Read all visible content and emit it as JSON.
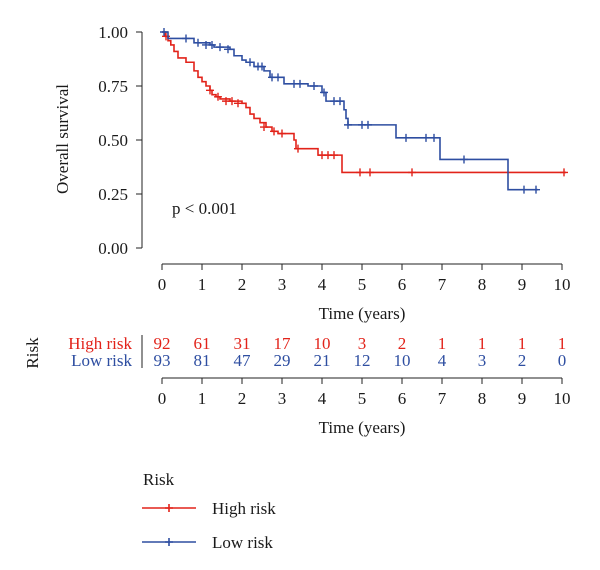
{
  "chart_data": {
    "type": "line",
    "subtype": "kaplan-meier",
    "ylabel": "Overall survival",
    "xlabel": "Time (years)",
    "annotation": "p < 0.001",
    "x_ticks": [
      0,
      1,
      2,
      3,
      4,
      5,
      6,
      7,
      8,
      9,
      10
    ],
    "y_ticks": [
      "0.00",
      "0.25",
      "0.50",
      "0.75",
      "1.00"
    ],
    "xlim": [
      0,
      10
    ],
    "ylim": [
      0,
      1
    ],
    "series": [
      {
        "name": "High risk",
        "color": "#e2231a",
        "steps": [
          [
            0,
            1.0
          ],
          [
            0.08,
            0.98
          ],
          [
            0.15,
            0.96
          ],
          [
            0.22,
            0.94
          ],
          [
            0.3,
            0.91
          ],
          [
            0.4,
            0.88
          ],
          [
            0.6,
            0.86
          ],
          [
            0.8,
            0.82
          ],
          [
            0.9,
            0.79
          ],
          [
            1.0,
            0.77
          ],
          [
            1.1,
            0.75
          ],
          [
            1.2,
            0.73
          ],
          [
            1.25,
            0.71
          ],
          [
            1.35,
            0.7
          ],
          [
            1.45,
            0.69
          ],
          [
            1.7,
            0.68
          ],
          [
            2.0,
            0.67
          ],
          [
            2.1,
            0.65
          ],
          [
            2.2,
            0.62
          ],
          [
            2.3,
            0.6
          ],
          [
            2.45,
            0.58
          ],
          [
            2.6,
            0.56
          ],
          [
            2.75,
            0.54
          ],
          [
            2.9,
            0.53
          ],
          [
            3.1,
            0.53
          ],
          [
            3.3,
            0.5
          ],
          [
            3.35,
            0.46
          ],
          [
            3.8,
            0.46
          ],
          [
            3.9,
            0.43
          ],
          [
            4.45,
            0.43
          ],
          [
            4.5,
            0.35
          ],
          [
            10.1,
            0.35
          ]
        ],
        "censors": [
          [
            0.1,
            0.98
          ],
          [
            1.2,
            0.73
          ],
          [
            1.4,
            0.7
          ],
          [
            1.6,
            0.68
          ],
          [
            1.75,
            0.68
          ],
          [
            1.9,
            0.67
          ],
          [
            2.55,
            0.56
          ],
          [
            2.8,
            0.54
          ],
          [
            3.0,
            0.53
          ],
          [
            3.4,
            0.46
          ],
          [
            4.0,
            0.43
          ],
          [
            4.15,
            0.43
          ],
          [
            4.3,
            0.43
          ],
          [
            4.95,
            0.35
          ],
          [
            5.2,
            0.35
          ],
          [
            6.25,
            0.35
          ],
          [
            10.05,
            0.35
          ]
        ]
      },
      {
        "name": "Low risk",
        "color": "#2e4ea1",
        "steps": [
          [
            0,
            1.0
          ],
          [
            0.15,
            0.97
          ],
          [
            0.75,
            0.97
          ],
          [
            0.8,
            0.95
          ],
          [
            1.2,
            0.94
          ],
          [
            1.3,
            0.93
          ],
          [
            1.7,
            0.92
          ],
          [
            1.8,
            0.89
          ],
          [
            2.0,
            0.87
          ],
          [
            2.1,
            0.86
          ],
          [
            2.3,
            0.84
          ],
          [
            2.55,
            0.82
          ],
          [
            2.7,
            0.79
          ],
          [
            3.0,
            0.79
          ],
          [
            3.05,
            0.76
          ],
          [
            3.6,
            0.76
          ],
          [
            3.65,
            0.75
          ],
          [
            3.95,
            0.75
          ],
          [
            4.0,
            0.72
          ],
          [
            4.1,
            0.68
          ],
          [
            4.5,
            0.68
          ],
          [
            4.55,
            0.64
          ],
          [
            4.6,
            0.6
          ],
          [
            4.65,
            0.57
          ],
          [
            5.8,
            0.57
          ],
          [
            5.85,
            0.51
          ],
          [
            6.9,
            0.51
          ],
          [
            6.95,
            0.41
          ],
          [
            8.6,
            0.41
          ],
          [
            8.65,
            0.27
          ],
          [
            9.4,
            0.27
          ]
        ],
        "censors": [
          [
            0.05,
            1.0
          ],
          [
            0.6,
            0.97
          ],
          [
            0.9,
            0.95
          ],
          [
            1.1,
            0.94
          ],
          [
            1.25,
            0.94
          ],
          [
            1.45,
            0.93
          ],
          [
            1.65,
            0.92
          ],
          [
            2.2,
            0.86
          ],
          [
            2.4,
            0.84
          ],
          [
            2.5,
            0.84
          ],
          [
            2.75,
            0.79
          ],
          [
            2.9,
            0.79
          ],
          [
            3.3,
            0.76
          ],
          [
            3.45,
            0.76
          ],
          [
            3.8,
            0.75
          ],
          [
            4.05,
            0.72
          ],
          [
            4.3,
            0.68
          ],
          [
            4.45,
            0.68
          ],
          [
            4.65,
            0.57
          ],
          [
            5.0,
            0.57
          ],
          [
            5.15,
            0.57
          ],
          [
            6.1,
            0.51
          ],
          [
            6.6,
            0.51
          ],
          [
            6.8,
            0.51
          ],
          [
            7.55,
            0.41
          ],
          [
            9.05,
            0.27
          ],
          [
            9.35,
            0.27
          ]
        ]
      }
    ]
  },
  "risk_table": {
    "title": "Risk",
    "xlabel": "Time (years)",
    "times": [
      0,
      1,
      2,
      3,
      4,
      5,
      6,
      7,
      8,
      9,
      10
    ],
    "rows": [
      {
        "label": "High risk",
        "color": "#e2231a",
        "counts": [
          92,
          61,
          31,
          17,
          10,
          3,
          2,
          1,
          1,
          1,
          1
        ]
      },
      {
        "label": "Low risk",
        "color": "#2e4ea1",
        "counts": [
          93,
          81,
          47,
          29,
          21,
          12,
          10,
          4,
          3,
          2,
          0
        ]
      }
    ]
  },
  "legend": {
    "title": "Risk",
    "items": [
      {
        "label": "High risk",
        "color": "#e2231a"
      },
      {
        "label": "Low risk",
        "color": "#2e4ea1"
      }
    ]
  }
}
